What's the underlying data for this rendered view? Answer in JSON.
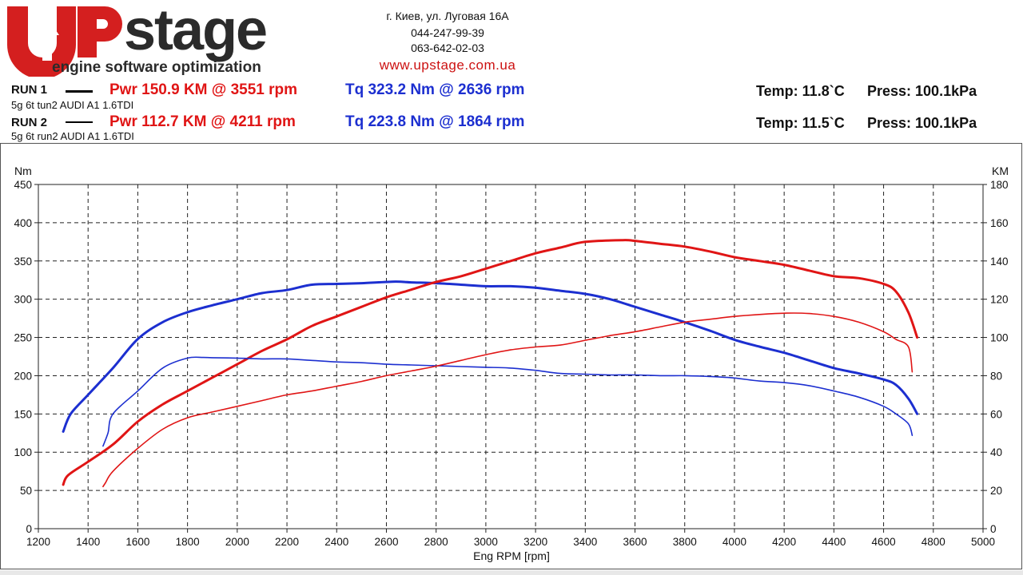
{
  "header": {
    "brand_main": "stage",
    "brand_tagline": "engine software optimization",
    "address": "г. Киев, ул. Луговая 16А",
    "phone1": "044-247-99-39",
    "phone2": "063-642-02-03",
    "website": "www.upstage.com.ua"
  },
  "runs": [
    {
      "label": "RUN 1",
      "desc": "5g 6t tun2 AUDI A1 1.6TDI",
      "pwr": "Pwr  150.9 KM @ 3551 rpm",
      "tq": "Tq 323.2 Nm @ 2636 rpm",
      "temp": "Temp: 11.8`C",
      "press": "Press: 100.1kPa"
    },
    {
      "label": "RUN 2",
      "desc": "5g 6t run2 AUDI A1 1.6TDI",
      "pwr": "Pwr  112.7 KM @ 4211 rpm",
      "tq": "Tq 223.8 Nm @ 1864 rpm",
      "temp": "Temp: 11.5`C",
      "press": "Press: 100.1kPa"
    }
  ],
  "colors": {
    "power": "#e01515",
    "torque": "#1c2fd0",
    "brand_red": "#d41f1f",
    "brand_dark": "#2b2b2b"
  },
  "chart_data": {
    "type": "line",
    "xlabel": "Eng RPM [rpm]",
    "ylabel_left": "Nm",
    "ylabel_right": "KM",
    "xlim": [
      1200,
      5000
    ],
    "ylim_left": [
      0,
      450
    ],
    "ylim_right": [
      0,
      180
    ],
    "x_ticks": [
      1200,
      1400,
      1600,
      1800,
      2000,
      2200,
      2400,
      2600,
      2800,
      3000,
      3200,
      3400,
      3600,
      3800,
      4000,
      4200,
      4400,
      4600,
      4800,
      5000
    ],
    "y_ticks_left": [
      0,
      50,
      100,
      150,
      200,
      250,
      300,
      350,
      400,
      450
    ],
    "y_ticks_right": [
      0,
      20,
      40,
      60,
      80,
      100,
      120,
      140,
      160,
      180
    ],
    "grid": true,
    "series": [
      {
        "run": 1,
        "quantity": "torque",
        "axis": "left",
        "width": 3,
        "x": [
          1300,
          1330,
          1400,
          1500,
          1600,
          1700,
          1800,
          1900,
          2000,
          2100,
          2200,
          2300,
          2400,
          2500,
          2636,
          2700,
          2800,
          2900,
          3000,
          3100,
          3200,
          3300,
          3400,
          3500,
          3600,
          3700,
          3800,
          3900,
          4000,
          4100,
          4200,
          4300,
          4400,
          4500,
          4600,
          4650,
          4700,
          4735
        ],
        "y": [
          127,
          150,
          175,
          210,
          248,
          270,
          283,
          292,
          300,
          308,
          312,
          319,
          320,
          321,
          323,
          322,
          321,
          319,
          317,
          317,
          315,
          311,
          307,
          300,
          290,
          280,
          270,
          259,
          247,
          238,
          230,
          220,
          210,
          203,
          195,
          188,
          170,
          150
        ]
      },
      {
        "run": 1,
        "quantity": "power",
        "axis": "right",
        "width": 3,
        "x": [
          1300,
          1320,
          1400,
          1500,
          1600,
          1700,
          1800,
          1900,
          2000,
          2100,
          2200,
          2300,
          2400,
          2500,
          2600,
          2700,
          2800,
          2900,
          3000,
          3100,
          3200,
          3300,
          3400,
          3551,
          3600,
          3700,
          3800,
          3900,
          4000,
          4100,
          4200,
          4300,
          4400,
          4500,
          4600,
          4650,
          4700,
          4735
        ],
        "y": [
          23,
          28,
          35,
          44,
          56,
          65,
          72,
          79,
          86,
          93,
          99,
          106,
          111,
          116,
          121,
          125,
          129,
          132,
          136,
          140,
          144,
          147,
          150,
          150.9,
          150.5,
          149,
          147.5,
          145,
          142,
          140,
          138,
          135,
          132,
          131,
          128,
          124,
          113,
          100
        ]
      },
      {
        "run": 2,
        "quantity": "torque",
        "axis": "left",
        "width": 1.6,
        "x": [
          1460,
          1480,
          1500,
          1600,
          1700,
          1800,
          1864,
          1900,
          2000,
          2100,
          2200,
          2300,
          2400,
          2500,
          2600,
          2700,
          2800,
          2900,
          3000,
          3100,
          3200,
          3300,
          3400,
          3500,
          3600,
          3700,
          3800,
          3900,
          4000,
          4100,
          4200,
          4300,
          4400,
          4500,
          4600,
          4650,
          4700,
          4715
        ],
        "y": [
          108,
          125,
          150,
          180,
          210,
          223,
          223.8,
          223.5,
          223,
          222,
          222,
          220,
          218,
          217,
          215,
          214,
          213,
          212,
          211,
          210,
          207,
          203,
          202,
          201,
          201,
          200,
          200,
          199,
          197,
          193,
          191,
          187,
          180,
          172,
          160,
          150,
          137,
          122
        ]
      },
      {
        "run": 2,
        "quantity": "power",
        "axis": "right",
        "width": 1.6,
        "x": [
          1460,
          1470,
          1500,
          1600,
          1700,
          1800,
          1900,
          2000,
          2100,
          2200,
          2300,
          2400,
          2500,
          2600,
          2700,
          2800,
          2900,
          3000,
          3100,
          3200,
          3300,
          3400,
          3500,
          3600,
          3700,
          3800,
          3900,
          4000,
          4100,
          4211,
          4300,
          4400,
          4500,
          4600,
          4650,
          4700,
          4715
        ],
        "y": [
          22,
          24,
          30,
          42,
          52,
          58,
          61,
          64,
          67,
          70,
          72,
          74.5,
          77,
          80,
          82.5,
          85,
          88,
          91,
          93.5,
          95,
          96,
          98.5,
          101,
          103,
          105.5,
          108,
          109.5,
          111,
          112,
          112.7,
          112.5,
          111,
          108,
          103,
          99,
          95,
          82
        ]
      }
    ]
  }
}
